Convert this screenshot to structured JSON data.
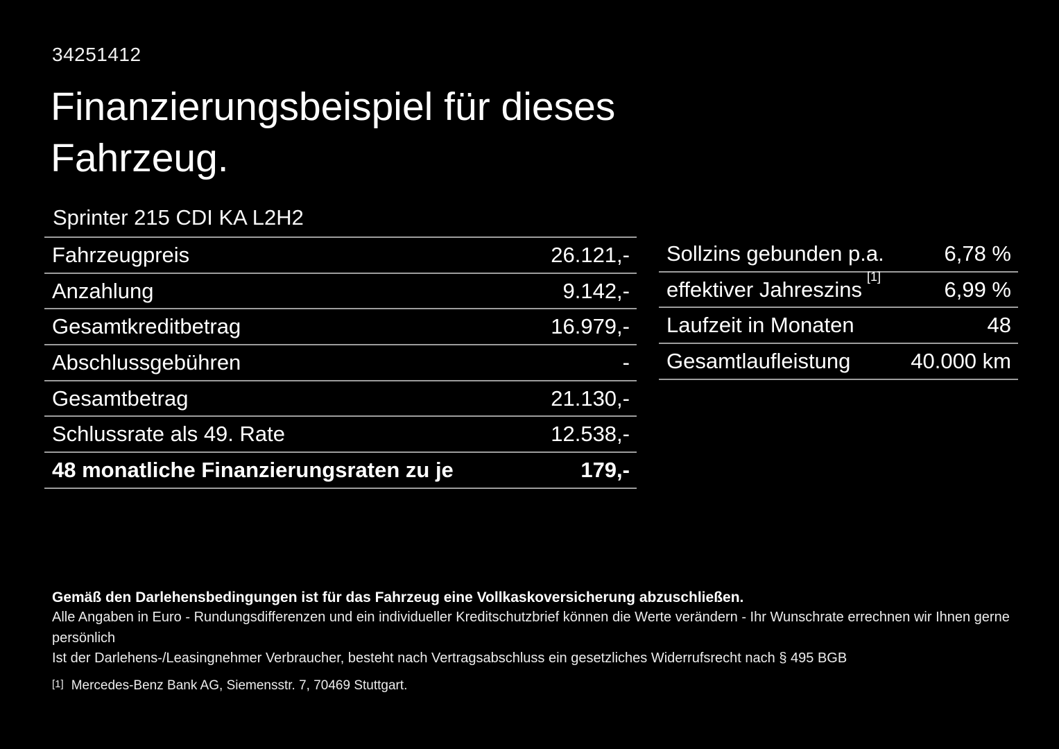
{
  "page": {
    "background_color": "#000000",
    "text_color": "#ffffff",
    "divider_color": "#9e9e9e"
  },
  "header": {
    "reference_number": "34251412",
    "title": "Finanzierungsbeispiel für dieses Fahrzeug.",
    "vehicle_model": "Sprinter 215 CDI KA L2H2"
  },
  "financing_table": {
    "rows": [
      {
        "label": "Fahrzeugpreis",
        "value": "26.121,-"
      },
      {
        "label": "Anzahlung",
        "value": "9.142,-"
      },
      {
        "label": "Gesamtkreditbetrag",
        "value": "16.979,-"
      },
      {
        "label": "Abschlussgebühren",
        "value": "-"
      },
      {
        "label": "Gesamtbetrag",
        "value": "21.130,-"
      },
      {
        "label": "Schlussrate als 49. Rate",
        "value": "12.538,-"
      },
      {
        "label": "48 monatliche Finanzierungsraten zu je",
        "value": "179,-"
      }
    ]
  },
  "conditions_table": {
    "rows": [
      {
        "label": "Sollzins gebunden p.a.",
        "sup": "",
        "value": "6,78 %"
      },
      {
        "label": "effektiver Jahreszins",
        "sup": "[1]",
        "value": "6,99 %"
      },
      {
        "label": "Laufzeit in Monaten",
        "sup": "",
        "value": "48"
      },
      {
        "label": "Gesamtlaufleistung",
        "sup": "",
        "value": "40.000 km"
      }
    ]
  },
  "footer": {
    "insurance_note": "Gemäß den Darlehensbedingungen ist für das Fahrzeug eine Vollkaskoversicherung abzuschließen.",
    "disclaimer_line1": "Alle Angaben in Euro - Rundungsdifferenzen und ein individueller Kreditschutzbrief können die Werte verändern - Ihr Wunschrate errechnen wir Ihnen gerne persönlich",
    "disclaimer_line2": "Ist der Darlehens-/Leasingnehmer Verbraucher, besteht nach Vertragsabschluss ein gesetzliches Widerrufsrecht nach § 495 BGB",
    "footnote_marker": "[1]",
    "footnote_text": "Mercedes-Benz Bank AG, Siemensstr. 7, 70469 Stuttgart."
  }
}
